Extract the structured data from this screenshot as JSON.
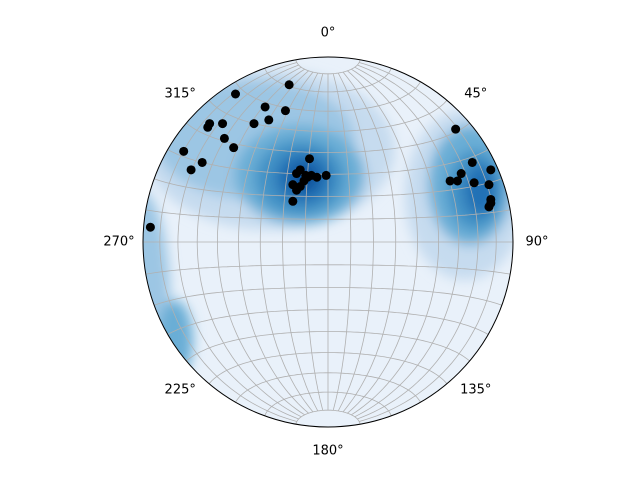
{
  "chart_data": {
    "type": "scatter",
    "xlim": [
      -1,
      1
    ],
    "ylim": [
      -1,
      1
    ],
    "grid": true,
    "color": "#000000",
    "azimuth_ticks": [
      {
        "value": 0,
        "label": "0°"
      },
      {
        "value": 45,
        "label": "45°"
      },
      {
        "value": 90,
        "label": "90°"
      },
      {
        "value": 135,
        "label": "135°"
      },
      {
        "value": 180,
        "label": "180°"
      },
      {
        "value": 225,
        "label": "225°"
      },
      {
        "value": 270,
        "label": "270°"
      },
      {
        "value": 315,
        "label": "315°"
      }
    ],
    "x": [
      -0.21,
      -0.5,
      -0.34,
      -0.23,
      -0.57,
      -0.64,
      -0.65,
      -0.4,
      -0.32,
      -0.56,
      -0.51,
      -0.78,
      -0.68,
      -0.74,
      -0.96,
      -0.1,
      -0.15,
      -0.17,
      -0.12,
      -0.09,
      -0.06,
      -0.11,
      -0.01,
      -0.19,
      -0.15,
      -0.17,
      -0.13,
      -0.19,
      0.69,
      0.78,
      0.88,
      0.72,
      0.66,
      0.7,
      0.79,
      0.87,
      0.88,
      0.88,
      0.87
    ],
    "values": [
      0.85,
      0.8,
      0.73,
      0.71,
      0.64,
      0.64,
      0.62,
      0.64,
      0.66,
      0.56,
      0.51,
      0.49,
      0.43,
      0.39,
      0.08,
      0.45,
      0.39,
      0.37,
      0.36,
      0.36,
      0.35,
      0.35,
      0.36,
      0.31,
      0.3,
      0.28,
      0.33,
      0.22,
      0.61,
      0.43,
      0.39,
      0.37,
      0.33,
      0.33,
      0.32,
      0.31,
      0.23,
      0.21,
      0.19
    ]
  }
}
